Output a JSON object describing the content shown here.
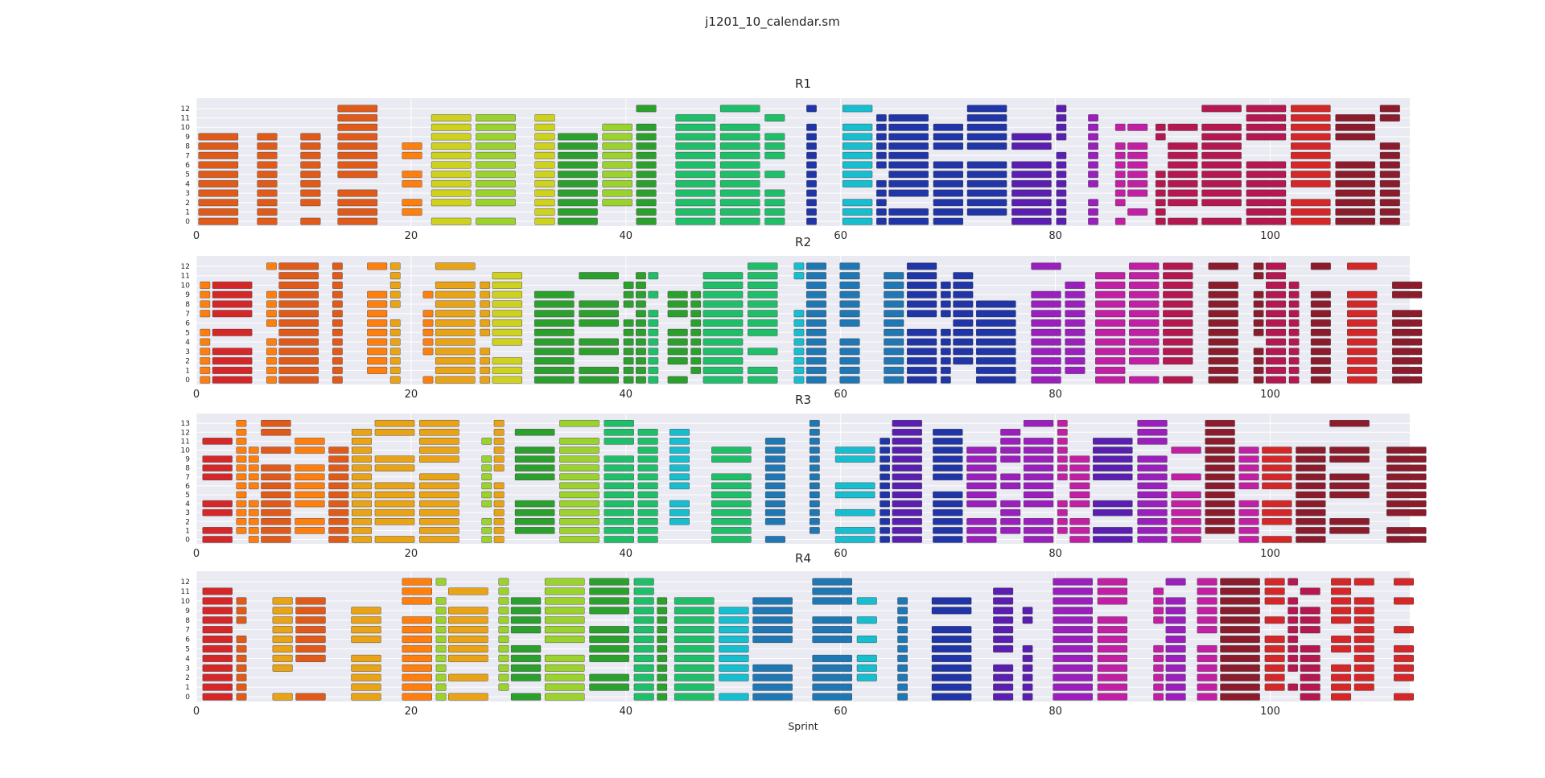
{
  "title": "j1201_10_calendar.sm",
  "xlabel": "Sprint",
  "colors": {
    "background": "#eaeaf2",
    "grid": "#ffffff",
    "palette": [
      "#d62728",
      "#e05b1a",
      "#ff7f0e",
      "#e8a317",
      "#cfd11f",
      "#9bd22e",
      "#2ca02c",
      "#1fbf6a",
      "#17becf",
      "#1f77b4",
      "#2035a8",
      "#5a1fb0",
      "#9b1fbd",
      "#c21fa5",
      "#b5174e",
      "#8c1c2c"
    ]
  },
  "chart_data": [
    {
      "type": "gantt",
      "title": "R1",
      "xlim": [
        0,
        113
      ],
      "xticks": [
        0,
        20,
        40,
        60,
        80,
        100
      ],
      "rows": [
        "0",
        "1",
        "2",
        "3",
        "4",
        "5",
        "6",
        "7",
        "8",
        "9",
        "10",
        "11",
        "12"
      ],
      "grid": true
    },
    {
      "type": "gantt",
      "title": "R2",
      "xlim": [
        0,
        113
      ],
      "xticks": [
        0,
        20,
        40,
        60,
        80,
        100
      ],
      "rows": [
        "0",
        "1",
        "2",
        "3",
        "4",
        "5",
        "6",
        "7",
        "8",
        "9",
        "10",
        "11",
        "12"
      ],
      "grid": true
    },
    {
      "type": "gantt",
      "title": "R3",
      "xlim": [
        0,
        113
      ],
      "xticks": [
        0,
        20,
        40,
        60,
        80,
        100
      ],
      "rows": [
        "0",
        "1",
        "2",
        "3",
        "4",
        "5",
        "6",
        "7",
        "8",
        "9",
        "10",
        "11",
        "12",
        "13"
      ],
      "grid": true
    },
    {
      "type": "gantt",
      "title": "R4",
      "xlim": [
        0,
        113
      ],
      "xticks": [
        0,
        20,
        40,
        60,
        80,
        100
      ],
      "rows": [
        "0",
        "1",
        "2",
        "3",
        "4",
        "5",
        "6",
        "7",
        "8",
        "9",
        "10",
        "11",
        "12"
      ],
      "grid": true
    }
  ]
}
